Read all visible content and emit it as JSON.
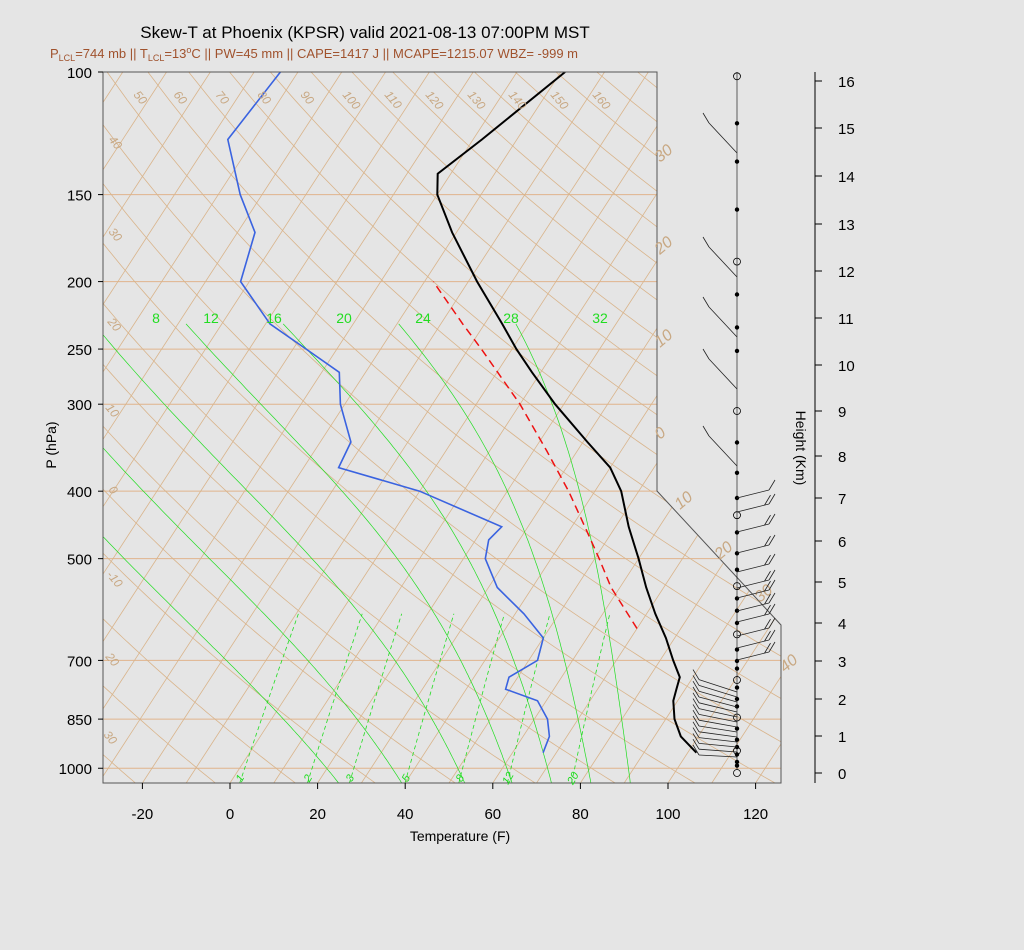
{
  "title": "Skew-T at Phoenix (KPSR) valid 2021-08-13 07:00PM MST",
  "subtitle": {
    "p_lcl_label": "P",
    "p_lcl_sub": "LCL",
    "p_lcl_value": "=744 mb || T",
    "t_lcl_sub": "LCL",
    "t_lcl_value": "=13",
    "t_lcl_sup": "o",
    "rest": "C || PW=45 mm || CAPE=1417 J || MCAPE=1215.07 WBZ= -999 m"
  },
  "colors": {
    "temperature": "#000000",
    "dewpoint": "#3a63e0",
    "parcel": "#ee1111",
    "mixing_ratio": "#22dd22",
    "background_lines": "#d9b48b",
    "pressure_lines": "#e0b48c"
  },
  "chart_data": {
    "type": "skew-t",
    "title": "Skew-T at Phoenix (KPSR) valid 2021-08-13 07:00PM MST",
    "xlabel": "Temperature (F)",
    "ylabel": "P (hPa)",
    "y2label": "Height (Km)",
    "x_ticks": [
      "-20",
      "0",
      "20",
      "40",
      "60",
      "80",
      "100",
      "120"
    ],
    "x_tick_values": [
      -20,
      0,
      20,
      40,
      60,
      80,
      100,
      120
    ],
    "y_ticks": [
      "100",
      "150",
      "200",
      "250",
      "300",
      "400",
      "500",
      "700",
      "850",
      "1000"
    ],
    "y_tick_values": [
      100,
      150,
      200,
      250,
      300,
      400,
      500,
      700,
      850,
      1000
    ],
    "height_ticks": [
      "0",
      "1",
      "2",
      "3",
      "4",
      "5",
      "6",
      "7",
      "8",
      "9",
      "10",
      "11",
      "12",
      "13",
      "14",
      "15",
      "16"
    ],
    "pressure_range_hpa": [
      100,
      1050
    ],
    "temperature_range_f_at_bottom": [
      -30,
      125
    ],
    "mixing_ratio_labels_top": [
      "8",
      "12",
      "16",
      "20",
      "24",
      "28",
      "32"
    ],
    "mixing_ratio_labels_bottom": [
      "1",
      "2",
      "3",
      "5",
      "8",
      "12",
      "20"
    ],
    "dry_adiabat_labels": [
      "50",
      "60",
      "70",
      "80",
      "90",
      "100",
      "110",
      "120",
      "130",
      "140",
      "150",
      "160"
    ],
    "isotherm_labels_left": [
      "40",
      "30",
      "20",
      "10",
      "0",
      "-10",
      "20",
      "30"
    ],
    "isotherm_labels_right": [
      "30",
      "20",
      "10",
      "0",
      "10",
      "20",
      "30",
      "40"
    ],
    "temperature_f": [
      {
        "p": 950,
        "t": 102
      },
      {
        "p": 900,
        "t": 96
      },
      {
        "p": 850,
        "t": 92
      },
      {
        "p": 800,
        "t": 89
      },
      {
        "p": 770,
        "t": 88
      },
      {
        "p": 740,
        "t": 87
      },
      {
        "p": 700,
        "t": 83
      },
      {
        "p": 650,
        "t": 78
      },
      {
        "p": 600,
        "t": 72
      },
      {
        "p": 550,
        "t": 66
      },
      {
        "p": 500,
        "t": 60
      },
      {
        "p": 450,
        "t": 53
      },
      {
        "p": 400,
        "t": 46
      },
      {
        "p": 370,
        "t": 40
      },
      {
        "p": 340,
        "t": 31
      },
      {
        "p": 300,
        "t": 18
      },
      {
        "p": 270,
        "t": 8
      },
      {
        "p": 250,
        "t": 1
      },
      {
        "p": 230,
        "t": -6
      },
      {
        "p": 200,
        "t": -18
      },
      {
        "p": 170,
        "t": -31
      },
      {
        "p": 150,
        "t": -40
      },
      {
        "p": 140,
        "t": -43
      },
      {
        "p": 125,
        "t": -38
      },
      {
        "p": 100,
        "t": -29
      }
    ],
    "dewpoint_f": [
      {
        "p": 950,
        "t": 67
      },
      {
        "p": 900,
        "t": 66
      },
      {
        "p": 850,
        "t": 63
      },
      {
        "p": 800,
        "t": 58
      },
      {
        "p": 770,
        "t": 49
      },
      {
        "p": 740,
        "t": 48
      },
      {
        "p": 700,
        "t": 52
      },
      {
        "p": 650,
        "t": 50
      },
      {
        "p": 600,
        "t": 42
      },
      {
        "p": 550,
        "t": 32
      },
      {
        "p": 500,
        "t": 25
      },
      {
        "p": 470,
        "t": 23
      },
      {
        "p": 450,
        "t": 24
      },
      {
        "p": 400,
        "t": 0
      },
      {
        "p": 370,
        "t": -22
      },
      {
        "p": 340,
        "t": -23
      },
      {
        "p": 300,
        "t": -31
      },
      {
        "p": 270,
        "t": -36
      },
      {
        "p": 250,
        "t": -47
      },
      {
        "p": 230,
        "t": -59
      },
      {
        "p": 200,
        "t": -72
      },
      {
        "p": 170,
        "t": -76
      },
      {
        "p": 150,
        "t": -85
      },
      {
        "p": 125,
        "t": -96
      },
      {
        "p": 100,
        "t": -94
      }
    ],
    "parcel_f": [
      {
        "p": 630,
        "t": 70
      },
      {
        "p": 550,
        "t": 58
      },
      {
        "p": 500,
        "t": 51
      },
      {
        "p": 450,
        "t": 43
      },
      {
        "p": 400,
        "t": 34
      },
      {
        "p": 350,
        "t": 23
      },
      {
        "p": 300,
        "t": 10
      },
      {
        "p": 250,
        "t": -7
      },
      {
        "p": 230,
        "t": -15
      },
      {
        "p": 200,
        "t": -28
      }
    ],
    "wind_levels_km": [
      0,
      0.2,
      0.3,
      0.5,
      0.6,
      0.7,
      0.9,
      1.2,
      1.5,
      1.8,
      2.0,
      2.3,
      2.5,
      2.8,
      3.0,
      3.3,
      3.7,
      4.0,
      4.3,
      4.6,
      4.9,
      5.3,
      5.7,
      6.2,
      6.6,
      7.0,
      7.6,
      8.3,
      9.0,
      10.3,
      10.8,
      11.5,
      12.2,
      13.3,
      14.3,
      15.1,
      16.1
    ]
  }
}
